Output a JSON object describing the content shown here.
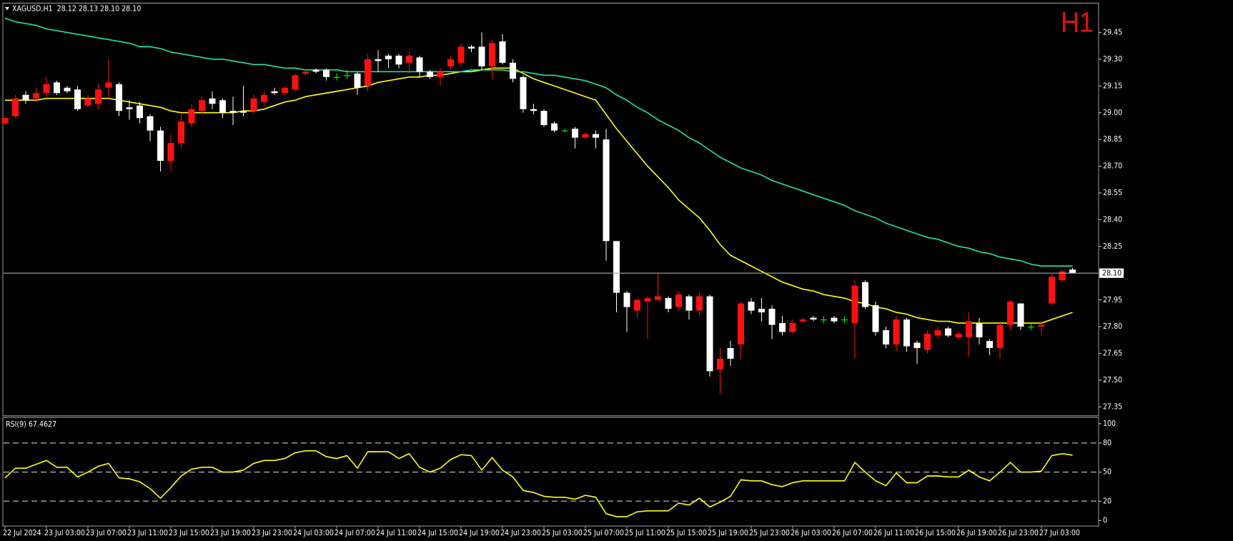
{
  "chart_data": [
    {
      "type": "candlestick",
      "title": "XAGUSD,H1  28.12 28.13 28.10 28.10",
      "timeframe": "H1",
      "categories": [
        "22 Jul 2024",
        null,
        null,
        null,
        "23 Jul 03:00",
        null,
        null,
        null,
        "23 Jul 07:00",
        null,
        null,
        null,
        "23 Jul 11:00",
        null,
        null,
        null,
        "23 Jul 15:00",
        null,
        null,
        null,
        "23 Jul 19:00",
        null,
        null,
        null,
        "23 Jul 23:00",
        null,
        null,
        null,
        "24 Jul 03:00",
        null,
        null,
        null,
        "24 Jul 07:00",
        null,
        null,
        null,
        "24 Jul 11:00",
        null,
        null,
        null,
        "24 Jul 15:00",
        null,
        null,
        null,
        "24 Jul 19:00",
        null,
        null,
        null,
        "24 Jul 23:00",
        null,
        null,
        null,
        "25 Jul 03:00",
        null,
        null,
        null,
        "25 Jul 07:00",
        null,
        null,
        null,
        "25 Jul 11:00",
        null,
        null,
        null,
        "25 Jul 15:00",
        null,
        null,
        null,
        "25 Jul 19:00",
        null,
        null,
        null,
        "25 Jul 23:00",
        null,
        null,
        null,
        "26 Jul 03:00",
        null,
        null,
        null,
        "26 Jul 07:00",
        null,
        null,
        null,
        "26 Jul 11:00",
        null,
        null,
        null,
        "26 Jul 15:00",
        null,
        null,
        null,
        "26 Jul 19:00",
        null,
        null,
        null,
        "26 Jul 23:00",
        null,
        null,
        null,
        "27 Jul 03:00",
        null,
        null,
        null
      ],
      "open": [
        28.94,
        28.98,
        29.1,
        29.08,
        29.11,
        29.17,
        29.14,
        29.13,
        29.04,
        29.05,
        29.14,
        29.16,
        29.03,
        29.04,
        28.98,
        28.9,
        28.73,
        28.83,
        28.94,
        29.01,
        29.08,
        29.07,
        29.01,
        29.01,
        29.01,
        29.06,
        29.12,
        29.11,
        29.13,
        29.22,
        29.24,
        29.24,
        29.2,
        29.21,
        29.22,
        29.15,
        29.3,
        29.32,
        29.32,
        29.28,
        29.31,
        29.23,
        29.2,
        29.26,
        29.28,
        29.37,
        29.37,
        29.26,
        29.4,
        29.28,
        29.2,
        29.02,
        29.01,
        28.94,
        28.9,
        28.91,
        28.86,
        28.88,
        28.85,
        28.28,
        27.99,
        27.89,
        27.94,
        27.95,
        27.96,
        27.91,
        27.97,
        27.89,
        27.97,
        27.56,
        27.68,
        27.7,
        27.94,
        27.9,
        27.9,
        27.82,
        27.77,
        27.83,
        27.85,
        27.84,
        27.85,
        27.84,
        27.82,
        28.05,
        27.92,
        27.78,
        27.7,
        27.84,
        27.71,
        27.67,
        27.75,
        27.79,
        27.74,
        27.74,
        27.82,
        27.72,
        27.68,
        27.81,
        27.93,
        27.8,
        27.8,
        27.93,
        28.06,
        28.12
      ],
      "high": [
        28.98,
        29.1,
        29.12,
        29.14,
        29.2,
        29.18,
        29.15,
        29.15,
        29.1,
        29.16,
        29.3,
        29.17,
        29.07,
        29.06,
        28.99,
        28.92,
        28.88,
        28.99,
        29.05,
        29.09,
        29.12,
        29.08,
        29.09,
        29.15,
        29.1,
        29.12,
        29.14,
        29.15,
        29.22,
        29.24,
        29.25,
        29.25,
        29.22,
        29.24,
        29.23,
        29.33,
        29.35,
        29.33,
        29.33,
        29.34,
        29.32,
        29.24,
        29.25,
        29.32,
        29.39,
        29.38,
        29.45,
        29.41,
        29.44,
        29.3,
        29.21,
        29.05,
        29.02,
        28.95,
        28.91,
        28.92,
        28.89,
        28.9,
        28.91,
        28.28,
        28.0,
        27.96,
        27.97,
        28.1,
        27.97,
        28.0,
        27.98,
        27.99,
        27.98,
        27.68,
        27.72,
        27.94,
        27.96,
        27.96,
        27.92,
        27.86,
        27.84,
        27.85,
        27.86,
        27.86,
        27.86,
        27.86,
        28.06,
        28.06,
        27.94,
        27.8,
        27.86,
        27.85,
        27.72,
        27.78,
        27.8,
        27.8,
        27.77,
        27.88,
        27.85,
        27.73,
        27.82,
        27.95,
        27.93,
        27.82,
        27.83,
        28.1,
        28.12,
        28.13
      ],
      "low": [
        28.93,
        28.97,
        29.05,
        29.06,
        29.09,
        29.1,
        29.11,
        29.01,
        29.03,
        29.02,
        29.08,
        28.98,
        28.96,
        28.94,
        28.84,
        28.67,
        28.67,
        28.8,
        28.92,
        28.99,
        29.02,
        28.97,
        28.93,
        28.98,
        28.99,
        29.04,
        29.1,
        29.1,
        29.12,
        29.21,
        29.22,
        29.18,
        29.18,
        29.19,
        29.1,
        29.12,
        29.23,
        29.25,
        29.25,
        29.22,
        29.2,
        29.19,
        29.15,
        29.24,
        29.26,
        29.34,
        29.24,
        29.19,
        29.27,
        29.17,
        29.0,
        28.99,
        28.92,
        28.89,
        28.89,
        28.8,
        28.85,
        28.8,
        28.17,
        27.88,
        27.77,
        27.85,
        27.73,
        27.94,
        27.88,
        27.89,
        27.84,
        27.86,
        27.52,
        27.42,
        27.58,
        27.62,
        27.87,
        27.83,
        27.73,
        27.75,
        27.76,
        27.82,
        27.83,
        27.82,
        27.82,
        27.82,
        27.62,
        27.9,
        27.75,
        27.68,
        27.66,
        27.66,
        27.59,
        27.65,
        27.73,
        27.74,
        27.73,
        27.63,
        27.7,
        27.64,
        27.62,
        27.78,
        27.78,
        27.78,
        27.75,
        27.92,
        28.05,
        28.1
      ],
      "close": [
        28.97,
        29.08,
        29.07,
        29.11,
        29.16,
        29.11,
        29.12,
        29.02,
        29.08,
        29.13,
        29.17,
        29.01,
        29.02,
        28.97,
        28.9,
        28.73,
        28.83,
        28.95,
        29.02,
        29.07,
        29.05,
        29.0,
        29.0,
        29.0,
        29.08,
        29.1,
        29.11,
        29.14,
        29.21,
        29.23,
        29.23,
        29.2,
        29.2,
        29.21,
        29.14,
        29.3,
        29.29,
        29.3,
        29.27,
        29.32,
        29.23,
        29.2,
        29.23,
        29.3,
        29.37,
        29.36,
        29.26,
        29.39,
        29.28,
        29.19,
        29.02,
        29.01,
        28.93,
        28.9,
        28.9,
        28.86,
        28.88,
        28.86,
        28.28,
        27.99,
        27.91,
        27.95,
        27.96,
        27.97,
        27.9,
        27.98,
        27.89,
        27.97,
        27.55,
        27.62,
        27.62,
        27.93,
        27.89,
        27.88,
        27.81,
        27.77,
        27.82,
        27.84,
        27.84,
        27.84,
        27.83,
        27.84,
        28.03,
        27.91,
        27.77,
        27.7,
        27.84,
        27.69,
        27.68,
        27.76,
        27.78,
        27.75,
        27.76,
        27.83,
        27.74,
        27.68,
        27.81,
        27.94,
        27.8,
        27.8,
        27.81,
        28.08,
        28.11,
        28.1
      ],
      "up_color": "#ff1010",
      "down_color": "#ffffff",
      "doji_color": "#00ff00",
      "lines": [
        {
          "color": "#ffff00",
          "values": [
            29.07,
            29.07,
            29.07,
            29.07,
            29.08,
            29.08,
            29.08,
            29.08,
            29.08,
            29.08,
            29.08,
            29.07,
            29.06,
            29.05,
            29.04,
            29.03,
            29.01,
            29.0,
            29.0,
            29.0,
            29.0,
            29.0,
            29.0,
            29.01,
            29.01,
            29.02,
            29.04,
            29.06,
            29.07,
            29.09,
            29.1,
            29.11,
            29.12,
            29.13,
            29.14,
            29.15,
            29.17,
            29.18,
            29.19,
            29.2,
            29.2,
            29.21,
            29.21,
            29.22,
            29.23,
            29.23,
            29.24,
            29.25,
            29.25,
            29.25,
            29.22,
            29.19,
            29.17,
            29.15,
            29.13,
            29.11,
            29.09,
            29.07,
            28.99,
            28.91,
            28.84,
            28.77,
            28.7,
            28.64,
            28.58,
            28.51,
            28.46,
            28.41,
            28.34,
            28.26,
            28.2,
            28.17,
            28.14,
            28.11,
            28.08,
            28.05,
            28.03,
            28.01,
            28.0,
            27.98,
            27.97,
            27.96,
            27.94,
            27.93,
            27.91,
            27.9,
            27.88,
            27.87,
            27.85,
            27.84,
            27.83,
            27.83,
            27.82,
            27.82,
            27.82,
            27.82,
            27.82,
            27.82,
            27.82,
            27.82,
            27.82,
            27.84,
            27.86,
            27.88
          ]
        },
        {
          "color": "#1fe0a8",
          "values": [
            29.53,
            29.51,
            29.5,
            29.49,
            29.47,
            29.46,
            29.45,
            29.44,
            29.43,
            29.42,
            29.41,
            29.4,
            29.39,
            29.37,
            29.37,
            29.36,
            29.34,
            29.33,
            29.32,
            29.31,
            29.3,
            29.3,
            29.29,
            29.28,
            29.27,
            29.27,
            29.26,
            29.25,
            29.25,
            29.24,
            29.24,
            29.24,
            29.24,
            29.23,
            29.23,
            29.23,
            29.23,
            29.23,
            29.23,
            29.23,
            29.23,
            29.23,
            29.23,
            29.23,
            29.23,
            29.24,
            29.24,
            29.24,
            29.24,
            29.23,
            29.23,
            29.22,
            29.21,
            29.21,
            29.2,
            29.19,
            29.18,
            29.16,
            29.14,
            29.1,
            29.07,
            29.03,
            29.0,
            28.96,
            28.93,
            28.9,
            28.86,
            28.83,
            28.79,
            28.75,
            28.72,
            28.69,
            28.67,
            28.65,
            28.62,
            28.6,
            28.58,
            28.56,
            28.54,
            28.52,
            28.5,
            28.48,
            28.45,
            28.43,
            28.41,
            28.38,
            28.36,
            28.34,
            28.32,
            28.3,
            28.29,
            28.27,
            28.25,
            28.24,
            28.22,
            28.21,
            28.19,
            28.18,
            28.17,
            28.15,
            28.14,
            28.14,
            28.14,
            28.14
          ]
        }
      ],
      "last_price": {
        "value": 28.1,
        "label": "28.10"
      },
      "ylim": [
        27.3,
        29.61
      ],
      "yticks": [
        29.45,
        {
          "value": 29.3,
          "label": "29.30"
        },
        29.15,
        {
          "value": 29,
          "label": "29.00"
        },
        28.85,
        {
          "value": 28.7,
          "label": "28.70"
        },
        28.55,
        {
          "value": 28.4,
          "label": "28.40"
        },
        28.25,
        27.95,
        {
          "value": 27.8,
          "label": "27.80"
        },
        27.65,
        {
          "value": 27.5,
          "label": "27.50"
        },
        27.35
      ]
    },
    {
      "type": "line",
      "title": "RSI(9) 67.4627",
      "color": "#ffff00",
      "values": [
        44,
        54,
        54,
        58,
        62,
        55,
        55,
        45,
        50,
        56,
        59,
        44,
        43,
        40,
        33,
        23,
        34,
        46,
        53,
        55,
        55,
        50,
        50,
        52,
        59,
        62,
        62,
        64,
        70,
        72,
        72,
        66,
        64,
        67,
        54,
        71,
        71,
        71,
        64,
        69,
        55,
        50,
        54,
        63,
        68,
        67,
        52,
        65,
        52,
        45,
        31,
        29,
        25,
        24,
        24,
        22,
        26,
        24,
        7,
        4,
        4,
        9,
        10,
        10,
        10,
        18,
        16,
        23,
        14,
        19,
        25,
        42,
        41,
        41,
        37,
        35,
        39,
        41,
        41,
        41,
        41,
        41,
        60,
        50,
        41,
        36,
        49,
        39,
        39,
        46,
        46,
        45,
        45,
        52,
        45,
        41,
        50,
        60,
        50,
        50,
        51,
        67,
        69,
        67.4627
      ],
      "levels": [
        80,
        50,
        20
      ],
      "ylim": [
        -5.7,
        105.7
      ],
      "yticks": [
        100,
        80,
        50,
        20,
        0
      ]
    }
  ]
}
